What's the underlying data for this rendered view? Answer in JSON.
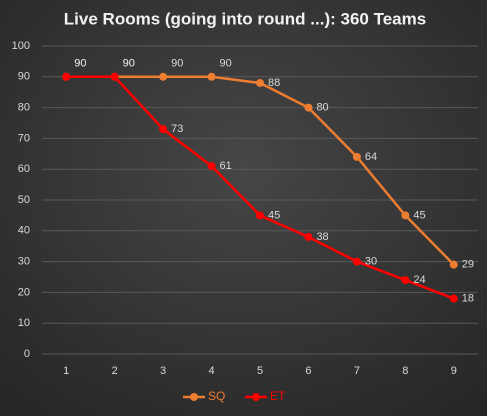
{
  "chart_data": {
    "type": "line",
    "title": "Live Rooms (going into round ...):  360 Teams",
    "categories": [
      1,
      2,
      3,
      4,
      5,
      6,
      7,
      8,
      9
    ],
    "series": [
      {
        "name": "SQ",
        "color": "#ed7d31",
        "values": [
          90,
          90,
          90,
          90,
          88,
          80,
          64,
          45,
          29
        ]
      },
      {
        "name": "ET",
        "color": "#ff0000",
        "values": [
          90,
          90,
          73,
          61,
          45,
          38,
          30,
          24,
          18
        ]
      }
    ],
    "ylim": [
      0,
      100
    ],
    "yticks": [
      0,
      10,
      20,
      30,
      40,
      50,
      60,
      70,
      80,
      90,
      100
    ],
    "grid": true,
    "legend": "bottom"
  }
}
